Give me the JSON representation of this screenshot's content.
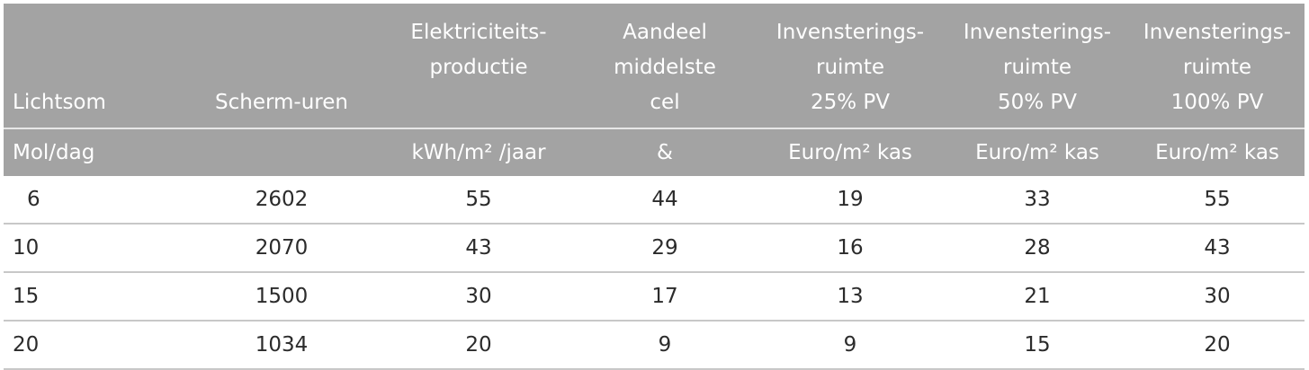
{
  "table": {
    "header": [
      {
        "key": "lichtsom",
        "lines": [
          "Lichtsom"
        ],
        "unit": "Mol/dag"
      },
      {
        "key": "schermuren",
        "lines": [
          "Scherm-uren"
        ],
        "unit": ""
      },
      {
        "key": "elektriciteit",
        "lines": [
          "Elektriciteits-",
          "productie"
        ],
        "unit": "kWh/m² /jaar"
      },
      {
        "key": "aandeel",
        "lines": [
          "Aandeel",
          "middelste",
          "cel"
        ],
        "unit": "&"
      },
      {
        "key": "inv25",
        "lines": [
          "Invensterings-",
          "ruimte",
          "25% PV"
        ],
        "unit": "Euro/m² kas"
      },
      {
        "key": "inv50",
        "lines": [
          "Invensterings-",
          "ruimte",
          "50% PV"
        ],
        "unit": "Euro/m² kas"
      },
      {
        "key": "inv100",
        "lines": [
          "Invensterings-",
          "ruimte",
          "100% PV"
        ],
        "unit": "Euro/m² kas"
      }
    ],
    "rows": [
      [
        "6",
        "2602",
        "55",
        "44",
        "19",
        "33",
        "55"
      ],
      [
        "10",
        "2070",
        "43",
        "29",
        "16",
        "28",
        "43"
      ],
      [
        "15",
        "1500",
        "30",
        "17",
        "13",
        "21",
        "30"
      ],
      [
        "20",
        "1034",
        "20",
        "9",
        "9",
        "15",
        "20"
      ]
    ]
  }
}
